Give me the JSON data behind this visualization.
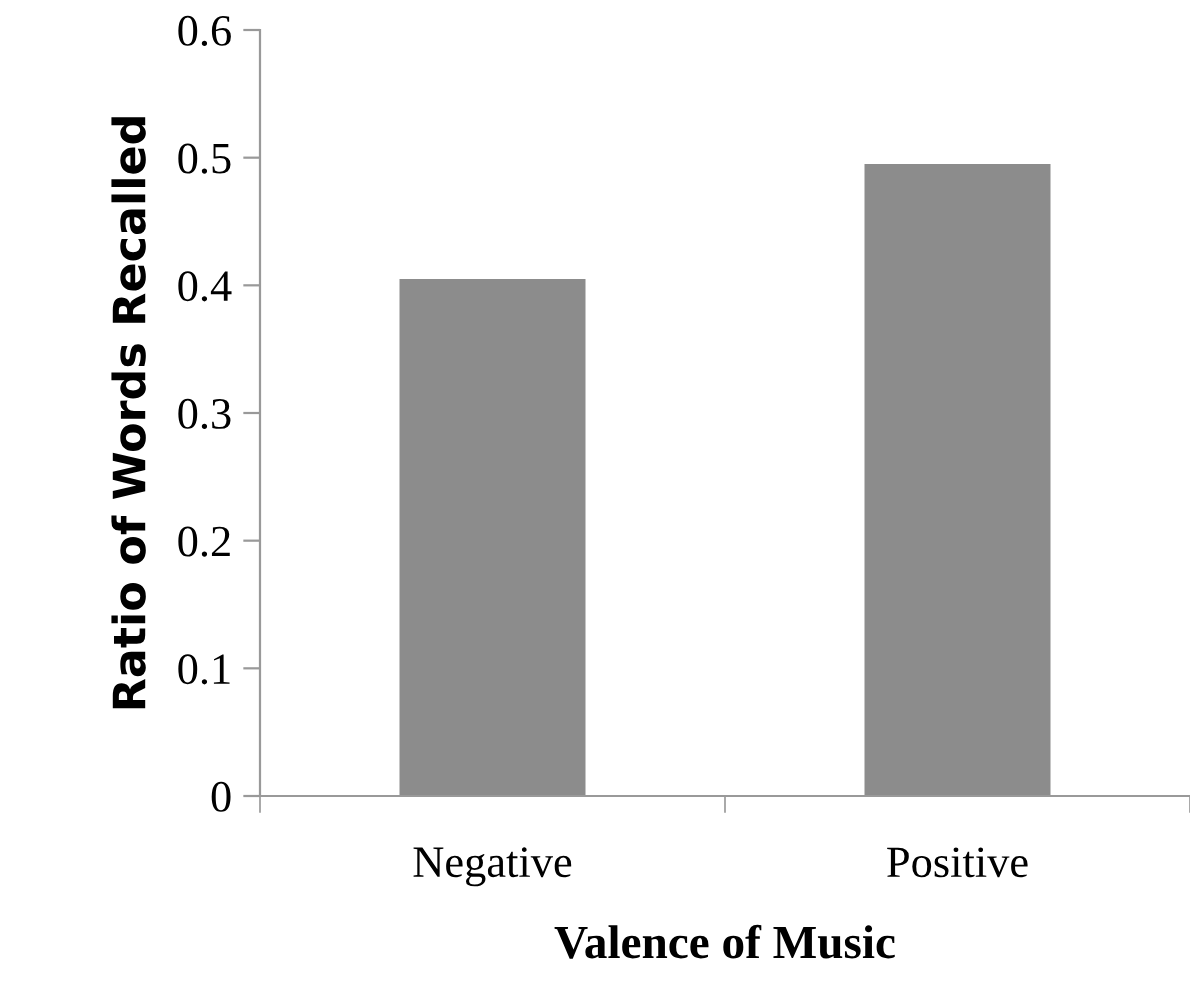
{
  "chart_data": {
    "type": "bar",
    "categories": [
      "Negative",
      "Positive"
    ],
    "values": [
      0.405,
      0.495
    ],
    "color": "#8c8c8c",
    "xlabel": "Valence of Music",
    "ylabel": "Ratio of Words Recalled",
    "ylim": [
      0,
      0.6
    ],
    "yticks": [
      {
        "value": 0,
        "label": "0"
      },
      0.1,
      0.2,
      0.3,
      0.4,
      0.5,
      0.6
    ],
    "grid": false,
    "legend": false
  }
}
